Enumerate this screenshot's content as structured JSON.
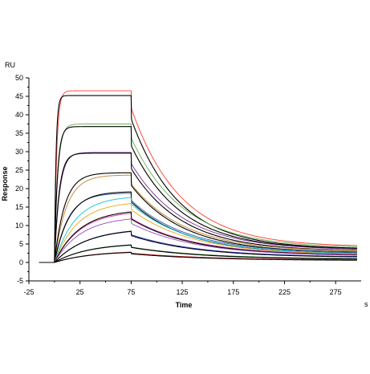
{
  "chart_data": {
    "type": "line",
    "title": "",
    "xlabel": "Time",
    "ylabel": "Response",
    "x_unit": "s",
    "y_unit": "RU",
    "xlim": [
      -25,
      300
    ],
    "ylim": [
      -5,
      50
    ],
    "x_ticks": [
      "-25",
      "25",
      "75",
      "125",
      "175",
      "225",
      "275"
    ],
    "y_ticks": [
      "-5",
      "0",
      "5",
      "10",
      "15",
      "20",
      "25",
      "30",
      "35",
      "40",
      "45",
      "50"
    ],
    "grid": false,
    "legend": "none",
    "injection": {
      "start": 0,
      "end": 75
    },
    "series": [
      {
        "color": "#ff3b30",
        "kind": "measured",
        "plateau": 46.5,
        "end": 4.2,
        "ka": 0.45,
        "kd": 0.021
      },
      {
        "color": "#000000",
        "kind": "fit",
        "plateau": 45.2,
        "end": 3.6,
        "ka": 0.65,
        "kd": 0.0216
      },
      {
        "color": "#6ab04c",
        "kind": "measured",
        "plateau": 37.5,
        "end": 3.9,
        "ka": 0.3,
        "kd": 0.02
      },
      {
        "color": "#000000",
        "kind": "fit",
        "plateau": 36.8,
        "end": 3.4,
        "ka": 0.34,
        "kd": 0.0205
      },
      {
        "color": "#7a2d8c",
        "kind": "measured",
        "plateau": 29.8,
        "end": 3.3,
        "ka": 0.2,
        "kd": 0.0195
      },
      {
        "color": "#000000",
        "kind": "fit",
        "plateau": 29.6,
        "end": 3.0,
        "ka": 0.22,
        "kd": 0.02
      },
      {
        "color": "#c87d2a",
        "kind": "measured",
        "plateau": 23.7,
        "end": 2.9,
        "ka": 0.085,
        "kd": 0.019
      },
      {
        "color": "#000000",
        "kind": "fit",
        "plateau": 24.3,
        "end": 2.6,
        "ka": 0.1,
        "kd": 0.0195
      },
      {
        "color": "#2a5fb0",
        "kind": "measured",
        "plateau": 18.8,
        "end": 2.5,
        "ka": 0.075,
        "kd": 0.018
      },
      {
        "color": "#000000",
        "kind": "fit",
        "plateau": 19.2,
        "end": 2.3,
        "ka": 0.07,
        "kd": 0.0185
      },
      {
        "color": "#12c2d6",
        "kind": "measured",
        "plateau": 18.0,
        "end": 2.2,
        "ka": 0.05,
        "kd": 0.0175
      },
      {
        "color": "#e6a817",
        "kind": "measured",
        "plateau": 16.5,
        "end": 2.0,
        "ka": 0.045,
        "kd": 0.017
      },
      {
        "color": "#d93aa0",
        "kind": "measured",
        "plateau": 14.0,
        "end": 1.9,
        "ka": 0.04,
        "kd": 0.0165
      },
      {
        "color": "#000000",
        "kind": "fit",
        "plateau": 14.4,
        "end": 1.8,
        "ka": 0.04,
        "kd": 0.0168
      },
      {
        "color": "#8a4fc2",
        "kind": "measured",
        "plateau": 12.5,
        "end": 1.7,
        "ka": 0.038,
        "kd": 0.016
      },
      {
        "color": "#2b3fd4",
        "kind": "measured",
        "plateau": 9.2,
        "end": 1.4,
        "ka": 0.032,
        "kd": 0.015
      },
      {
        "color": "#000000",
        "kind": "fit",
        "plateau": 9.3,
        "end": 1.3,
        "ka": 0.032,
        "kd": 0.0152
      },
      {
        "color": "#2e8b3a",
        "kind": "measured",
        "plateau": 5.2,
        "end": 0.9,
        "ka": 0.03,
        "kd": 0.014
      },
      {
        "color": "#000000",
        "kind": "fit",
        "plateau": 5.3,
        "end": 0.8,
        "ka": 0.03,
        "kd": 0.0142
      },
      {
        "color": "#c81e1e",
        "kind": "measured",
        "plateau": 3.2,
        "end": 0.6,
        "ka": 0.028,
        "kd": 0.013
      },
      {
        "color": "#000000",
        "kind": "fit",
        "plateau": 3.1,
        "end": 0.5,
        "ka": 0.028,
        "kd": 0.0132
      }
    ]
  }
}
